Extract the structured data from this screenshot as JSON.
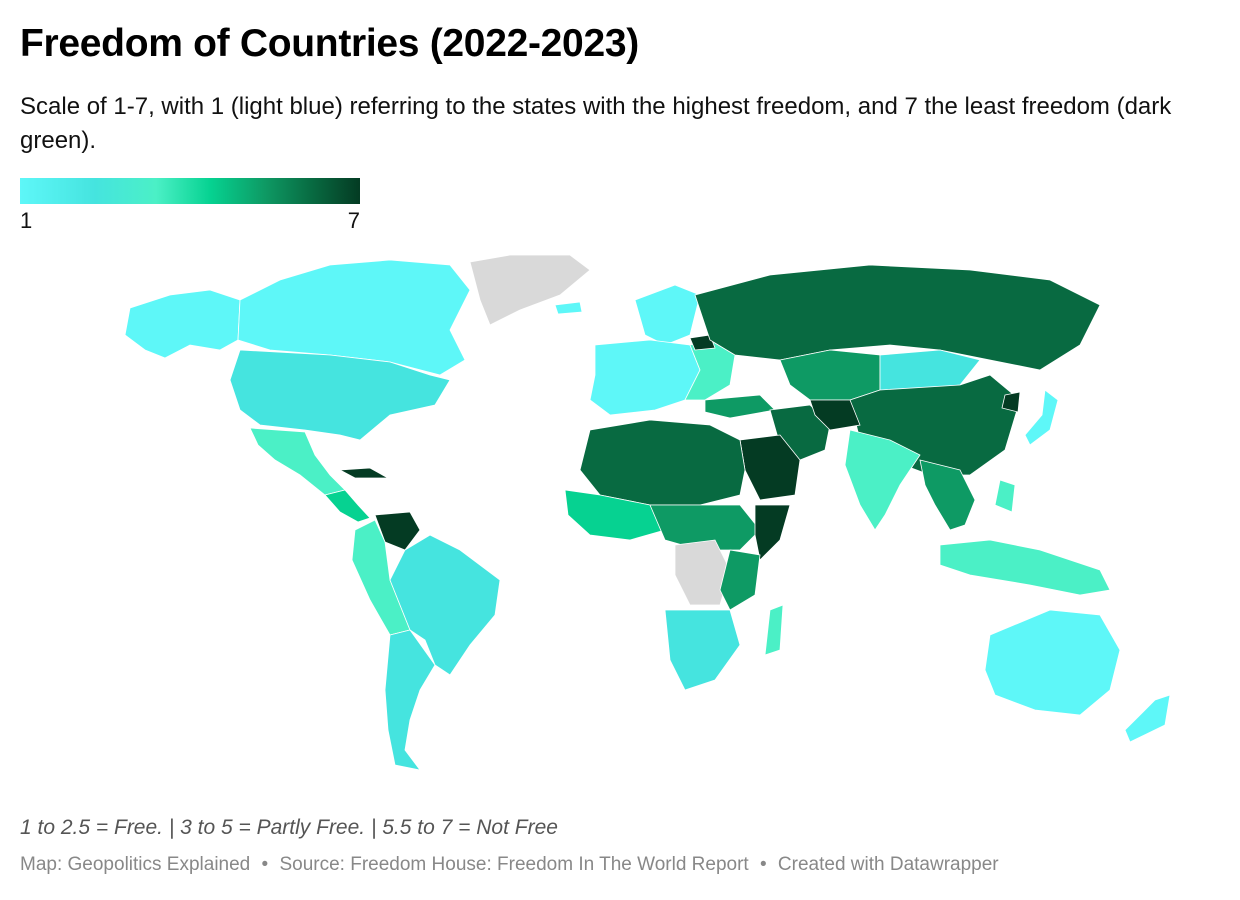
{
  "header": {
    "title": "Freedom of Countries (2022-2023)",
    "subtitle": "Scale of 1-7, with 1 (light blue) referring to the states with the highest freedom, and 7 the least freedom (dark green)."
  },
  "legend": {
    "min_label": "1",
    "max_label": "7",
    "scale": "continuous",
    "colors": [
      "#5ef7f8",
      "#45e4df",
      "#4bf0c6",
      "#06d291",
      "#0e9a64",
      "#086a41",
      "#043b23"
    ],
    "no_data_color": "#d9d9d9"
  },
  "footer": {
    "note": "1 to 2.5 = Free. | 3 to 5 = Partly Free. | 5.5 to 7 = Not Free",
    "credit_map": "Map: Geopolitics Explained",
    "credit_source": "Source: Freedom House: Freedom In The World Report",
    "credit_tool": "Created with Datawrapper",
    "separator": "•"
  },
  "map_data": {
    "type": "choropleth",
    "projection": "world",
    "ratings": [
      {
        "region": "Canada",
        "score": 1
      },
      {
        "region": "United States",
        "score": 1.5
      },
      {
        "region": "Mexico",
        "score": 3.5
      },
      {
        "region": "Brazil",
        "score": 2.5
      },
      {
        "region": "Venezuela",
        "score": 6.5
      },
      {
        "region": "Argentina",
        "score": 2
      },
      {
        "region": "Greenland",
        "score": null
      },
      {
        "region": "Western Europe",
        "score": 1
      },
      {
        "region": "Russia",
        "score": 6.5
      },
      {
        "region": "China",
        "score": 6.5
      },
      {
        "region": "Mongolia",
        "score": 1.5
      },
      {
        "region": "India",
        "score": 3.5
      },
      {
        "region": "Saudi Arabia",
        "score": 7
      },
      {
        "region": "Iran",
        "score": 6
      },
      {
        "region": "Afghanistan",
        "score": 7
      },
      {
        "region": "North Africa",
        "score": 5.5
      },
      {
        "region": "DR Congo",
        "score": null
      },
      {
        "region": "Southern Africa",
        "score": 2
      },
      {
        "region": "Somalia",
        "score": 7
      },
      {
        "region": "Madagascar",
        "score": 3.5
      },
      {
        "region": "Southeast Asia",
        "score": 5.5
      },
      {
        "region": "Indonesia",
        "score": 3
      },
      {
        "region": "Japan",
        "score": 1
      },
      {
        "region": "Korea (North)",
        "score": 7
      },
      {
        "region": "Australia",
        "score": 1
      },
      {
        "region": "New Zealand",
        "score": 1
      }
    ]
  }
}
